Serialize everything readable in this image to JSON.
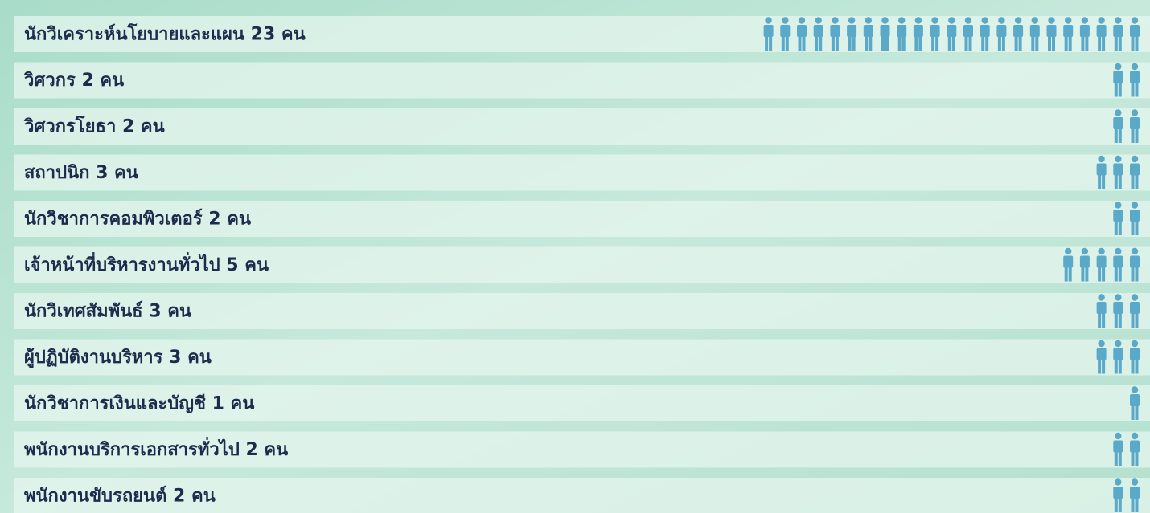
{
  "chart_data": {
    "type": "pictogram",
    "color": "#5ba9c9",
    "categories": [
      "นักวิเคราะห์นโยบายและแผน 23 คน",
      "วิศวกร 2 คน",
      "วิศวกรโยธา 2 คน",
      "สถาปนิก 3 คน",
      "นักวิชาการคอมพิวเตอร์ 2 คน",
      "เจ้าหน้าที่บริหารงานทั่วไป 5 คน",
      "นักวิเทศสัมพันธ์ 3 คน",
      "ผู้ปฏิบัติงานบริหาร 3 คน",
      "นักวิชาการเงินและบัญชี 1 คน",
      "พนักงานบริการเอกสารทั่วไป 2 คน",
      "พนักงานขับรถยนต์ 2 คน"
    ],
    "values": [
      23,
      2,
      2,
      3,
      2,
      5,
      3,
      3,
      1,
      2,
      2
    ]
  }
}
